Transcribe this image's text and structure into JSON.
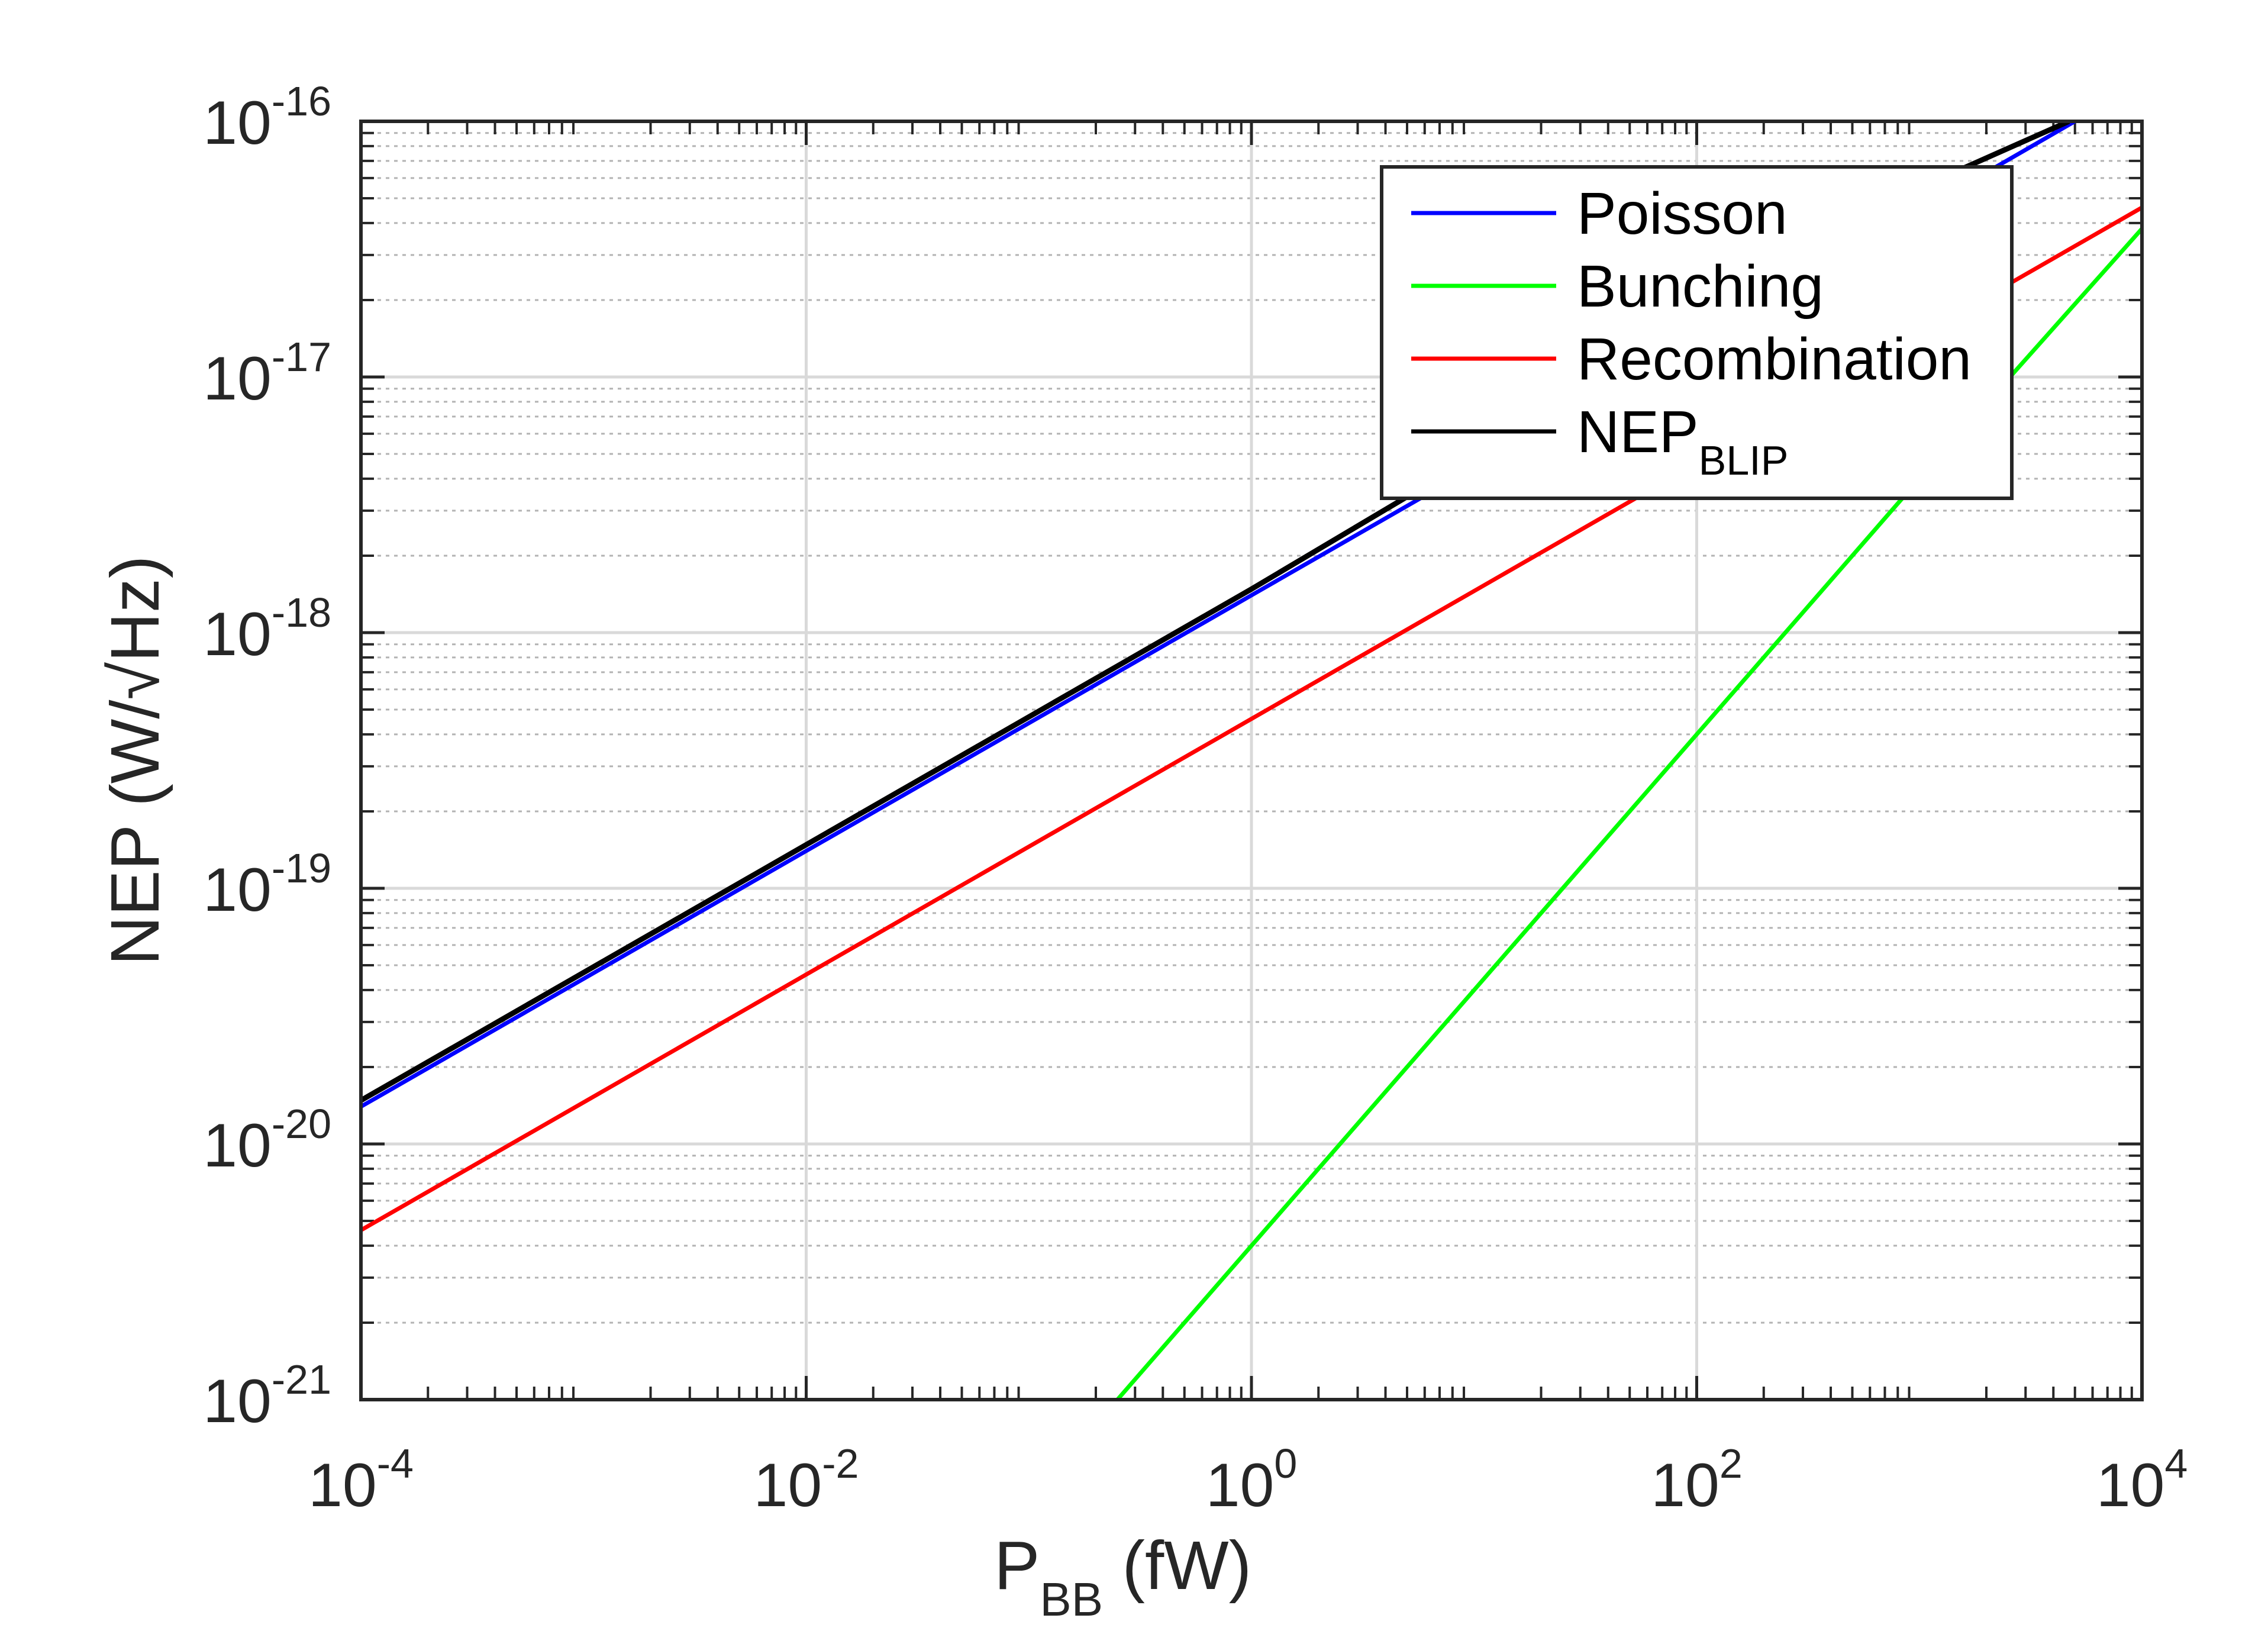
{
  "chart_data": {
    "type": "line",
    "xscale": "log",
    "yscale": "log",
    "xlabel": {
      "main": "P",
      "sub": "BB",
      "unit": " (fW)"
    },
    "ylabel": "NEP (W/√Hz)",
    "xlim": [
      0.0001,
      10000
    ],
    "ylim": [
      1e-21,
      1e-16
    ],
    "xticks": [
      {
        "value": 0.0001,
        "base": "10",
        "exp": "-4"
      },
      {
        "value": 0.01,
        "base": "10",
        "exp": "-2"
      },
      {
        "value": 1,
        "base": "10",
        "exp": "0"
      },
      {
        "value": 100,
        "base": "10",
        "exp": "2"
      },
      {
        "value": 10000,
        "base": "10",
        "exp": "4"
      }
    ],
    "yticks": [
      {
        "value": 1e-21,
        "base": "10",
        "exp": "-21"
      },
      {
        "value": 1e-20,
        "base": "10",
        "exp": "-20"
      },
      {
        "value": 1e-19,
        "base": "10",
        "exp": "-19"
      },
      {
        "value": 1e-18,
        "base": "10",
        "exp": "-18"
      },
      {
        "value": 1e-17,
        "base": "10",
        "exp": "-17"
      },
      {
        "value": 1e-16,
        "base": "10",
        "exp": "-16"
      }
    ],
    "grid": true,
    "minor_grid": true,
    "legend_position": "top-right",
    "series": [
      {
        "name": "Poisson",
        "label_main": "Poisson",
        "label_sub": "",
        "color": "#0000ff",
        "x": [
          0.0001,
          0.01,
          1,
          100,
          5000
        ],
        "y": [
          1.4e-20,
          1.4e-19,
          1.4e-18,
          1.4e-17,
          1e-16
        ]
      },
      {
        "name": "Bunching",
        "label_main": "Bunching",
        "label_sub": "",
        "color": "#00ff00",
        "x": [
          0.25,
          1,
          10,
          100,
          1000,
          10000
        ],
        "y": [
          1e-21,
          4e-21,
          4e-20,
          4e-19,
          4e-18,
          3.8e-17
        ]
      },
      {
        "name": "Recombination",
        "label_main": "Recombination",
        "label_sub": "",
        "color": "#ff0000",
        "x": [
          0.0001,
          0.01,
          1,
          100,
          10000
        ],
        "y": [
          4.6e-21,
          4.6e-20,
          4.6e-19,
          4.6e-18,
          4.6e-17
        ]
      },
      {
        "name": "NEPBLIP",
        "label_main": "NEP",
        "label_sub": "BLIP",
        "color": "#000000",
        "x": [
          0.0001,
          0.01,
          1,
          100,
          1000,
          4700
        ],
        "y": [
          1.48e-20,
          1.48e-19,
          1.48e-18,
          1.6e-17,
          5.5e-17,
          1e-16
        ]
      }
    ]
  }
}
